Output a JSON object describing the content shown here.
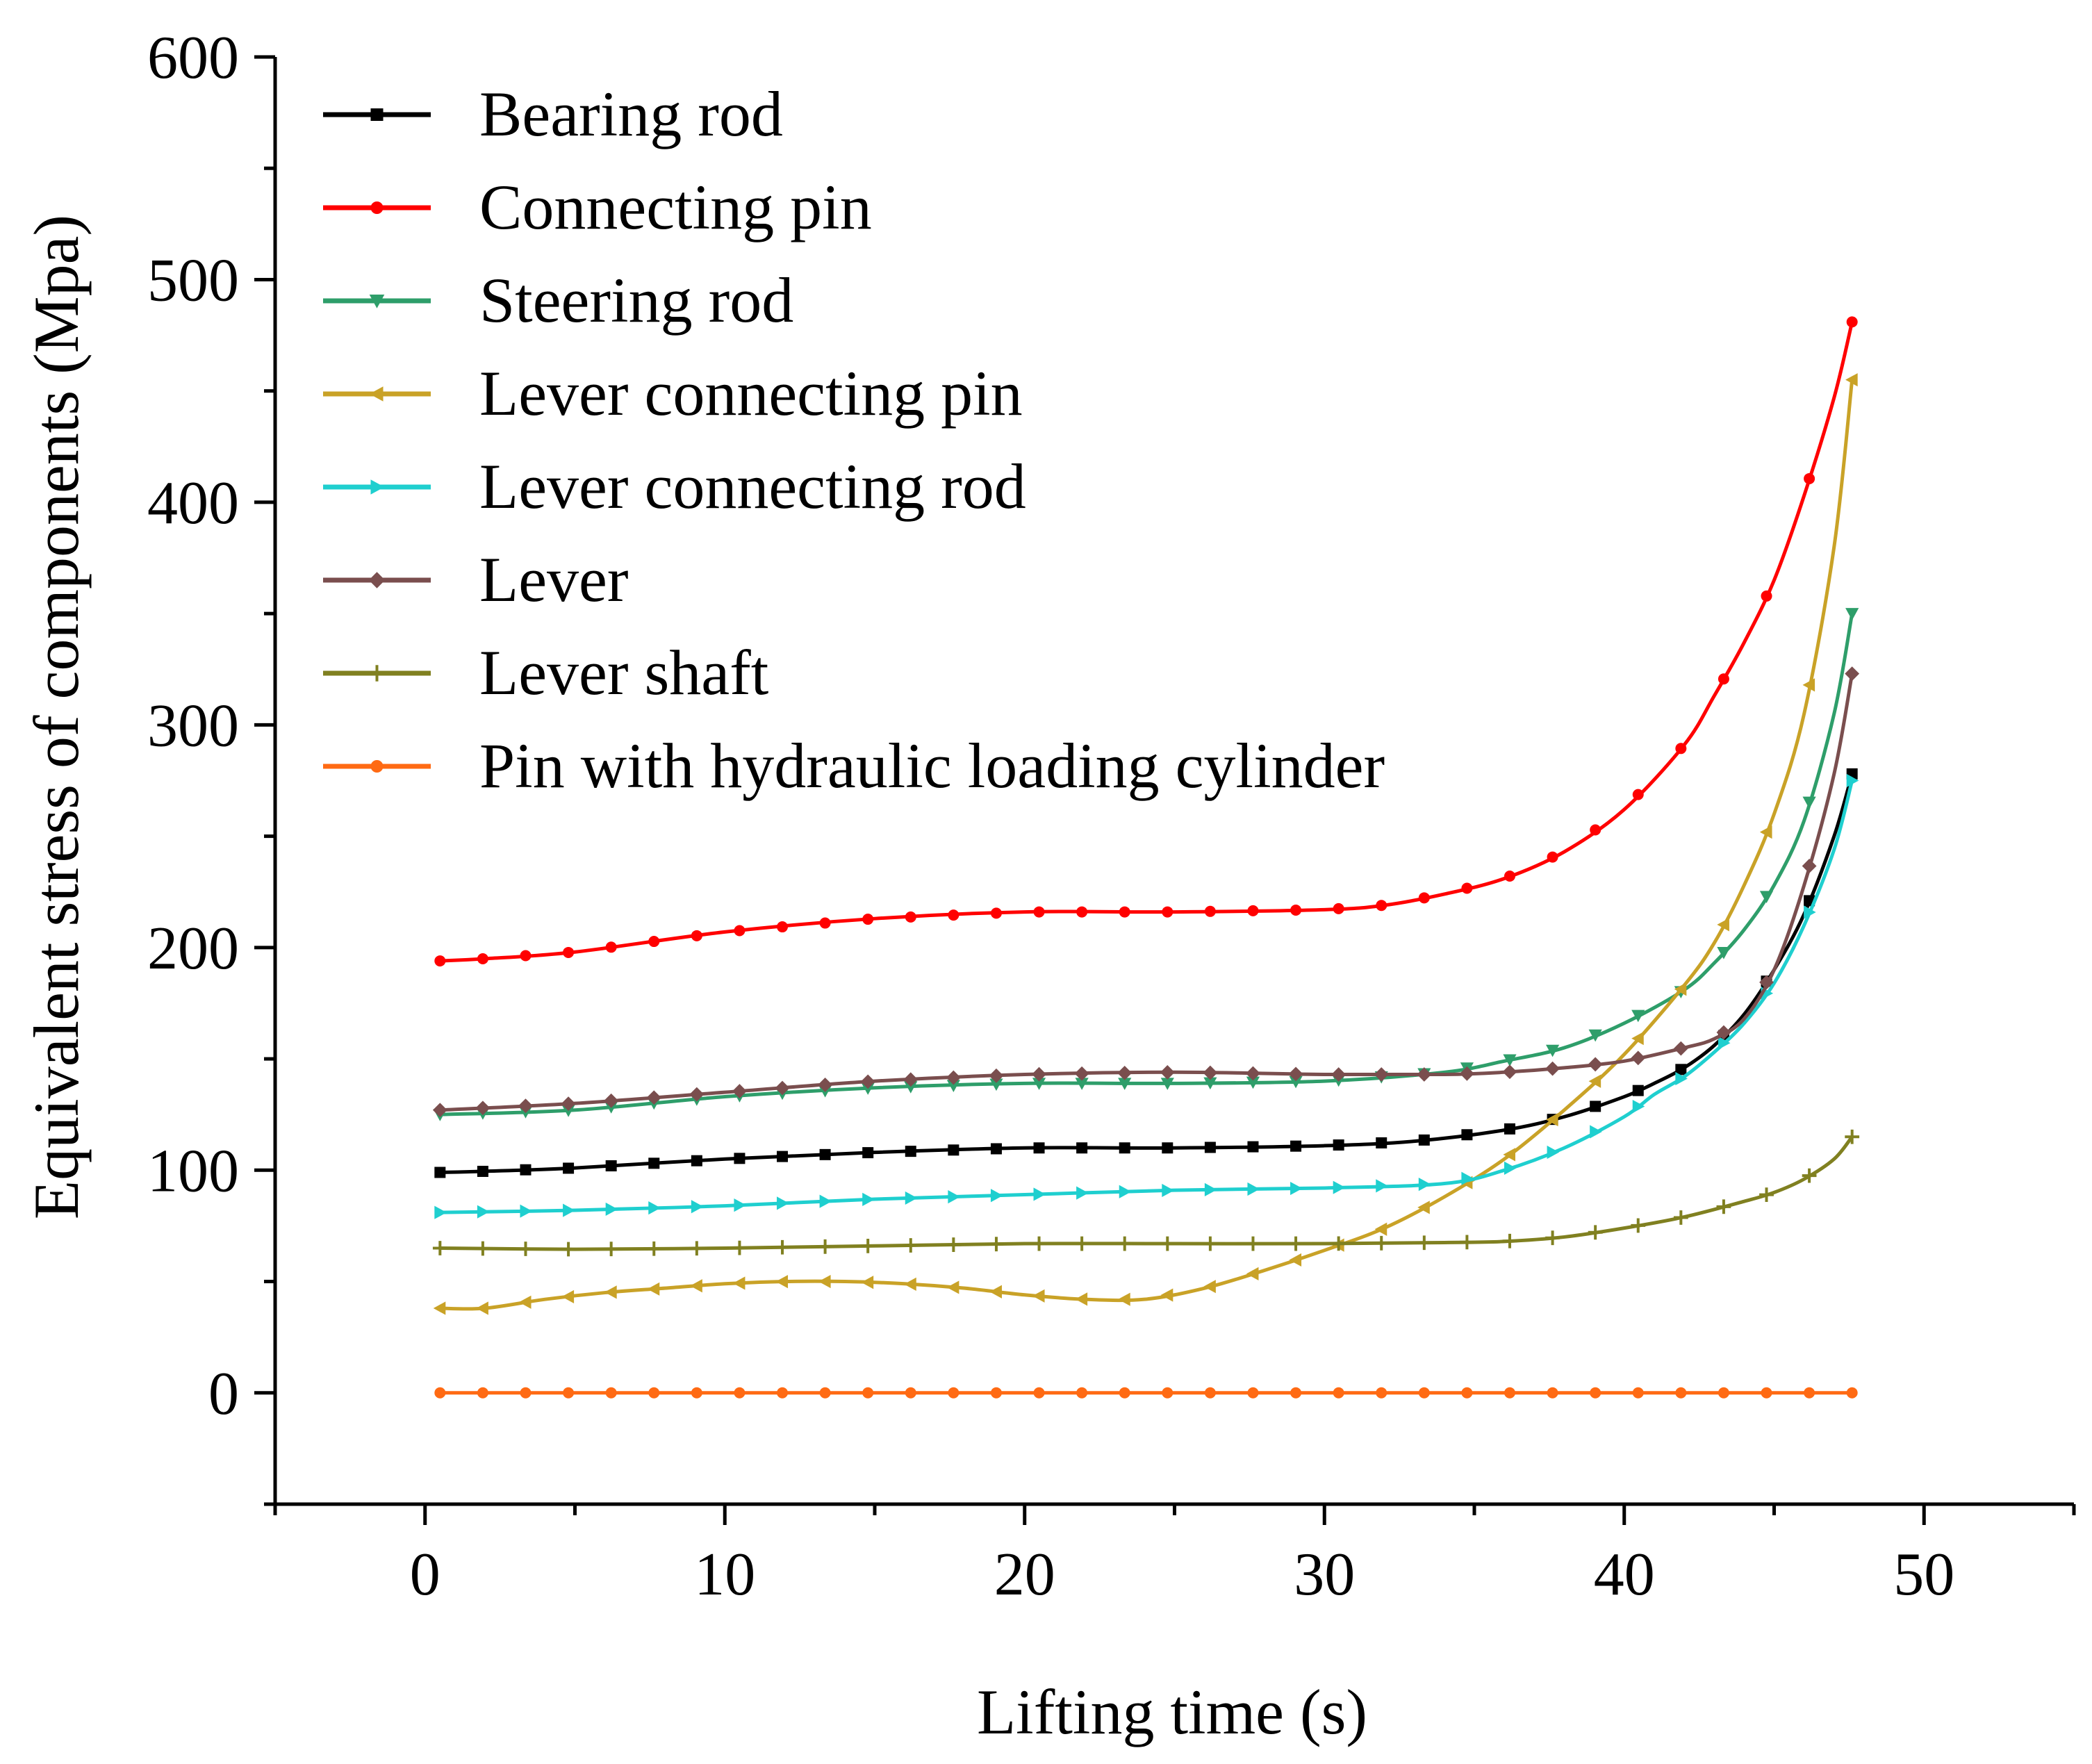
{
  "chart_data": {
    "type": "line",
    "title": "",
    "xlabel": "Lifting time (s)",
    "ylabel": "Equivalent stress of components (Mpa)",
    "xlim": [
      -5,
      55
    ],
    "ylim": [
      -50,
      600
    ],
    "xticks": [
      0,
      10,
      20,
      30,
      40,
      50
    ],
    "yticks": [
      0,
      100,
      200,
      300,
      400,
      500,
      600
    ],
    "legend_position": "top-left",
    "series": [
      {
        "name": "Bearing rod",
        "color": "#000000",
        "marker": "square",
        "x": [
          0.5,
          2,
          5,
          10,
          15,
          20,
          25,
          30,
          33,
          36,
          38,
          40,
          41,
          42,
          43,
          44,
          45,
          46,
          47,
          47.6
        ],
        "y": [
          99,
          99.5,
          101,
          105,
          108,
          110,
          110,
          111,
          113,
          118,
          124,
          133,
          139,
          146,
          156,
          170,
          190,
          215,
          250,
          278
        ]
      },
      {
        "name": "Connecting pin",
        "color": "#ff0000",
        "marker": "circle",
        "x": [
          0.5,
          2,
          5,
          10,
          15,
          20,
          25,
          30,
          32,
          34,
          36,
          38,
          40,
          42,
          43,
          44,
          45,
          46,
          47,
          47.6
        ],
        "y": [
          194,
          195,
          198,
          207,
          213,
          216,
          216,
          217,
          219,
          224,
          231,
          243,
          262,
          291,
          313,
          337,
          365,
          403,
          447,
          481
        ]
      },
      {
        "name": "Steering rod",
        "color": "#2e9e6a",
        "marker": "triangle-down",
        "x": [
          0.5,
          5,
          10,
          15,
          20,
          25,
          30,
          34,
          36,
          38,
          40,
          42,
          43,
          44,
          45,
          46,
          47,
          47.6
        ],
        "y": [
          125,
          127,
          133,
          137,
          139,
          139,
          140,
          144,
          149,
          155,
          166,
          181,
          193,
          208,
          228,
          257,
          305,
          350
        ]
      },
      {
        "name": "Lever connecting pin",
        "color": "#c9a227",
        "marker": "triangle-left",
        "x": [
          0.5,
          2,
          4,
          6,
          8,
          10,
          12,
          14,
          16,
          18,
          20,
          22,
          24,
          26,
          28,
          30,
          32,
          34,
          36,
          38,
          40,
          42,
          43,
          44,
          45,
          46,
          47,
          47.6
        ],
        "y": [
          38,
          38,
          42,
          45,
          47,
          49,
          50,
          50,
          49,
          47,
          44,
          42,
          42,
          47,
          55,
          64,
          74,
          88,
          105,
          127,
          152,
          183,
          202,
          228,
          260,
          305,
          380,
          455
        ]
      },
      {
        "name": "Lever connecting rod",
        "color": "#1fcfcf",
        "marker": "triangle-right",
        "x": [
          0.5,
          5,
          10,
          15,
          20,
          25,
          30,
          34,
          36,
          38,
          40,
          41,
          42,
          43,
          44,
          45,
          46,
          47,
          47.6
        ],
        "y": [
          81,
          82,
          84,
          87,
          89,
          91,
          92,
          94,
          100,
          110,
          124,
          134,
          142,
          153,
          166,
          184,
          210,
          244,
          275
        ]
      },
      {
        "name": "Lever",
        "color": "#7a4e4e",
        "marker": "diamond",
        "x": [
          0.5,
          5,
          10,
          15,
          20,
          25,
          30,
          34,
          36,
          38,
          40,
          42,
          43,
          44,
          45,
          46,
          47,
          47.6
        ],
        "y": [
          127,
          130,
          135,
          140,
          143,
          144,
          143,
          143,
          144,
          146,
          149,
          155,
          159,
          168,
          190,
          228,
          278,
          323
        ]
      },
      {
        "name": "Lever shaft",
        "color": "#808020",
        "marker": "plus",
        "x": [
          0.5,
          5,
          10,
          15,
          20,
          25,
          30,
          34,
          36,
          38,
          40,
          42,
          44,
          45,
          46,
          47,
          47.6
        ],
        "y": [
          65,
          64.5,
          65,
          66,
          67,
          67,
          67,
          67.5,
          68,
          70,
          74,
          79,
          86,
          90,
          96,
          105,
          115
        ]
      },
      {
        "name": "Pin with hydraulic loading cylinder",
        "color": "#ff6a13",
        "marker": "circle",
        "x": [
          0.5,
          10,
          20,
          30,
          40,
          47.6
        ],
        "y": [
          0,
          0,
          0,
          0,
          0,
          0
        ]
      }
    ]
  }
}
